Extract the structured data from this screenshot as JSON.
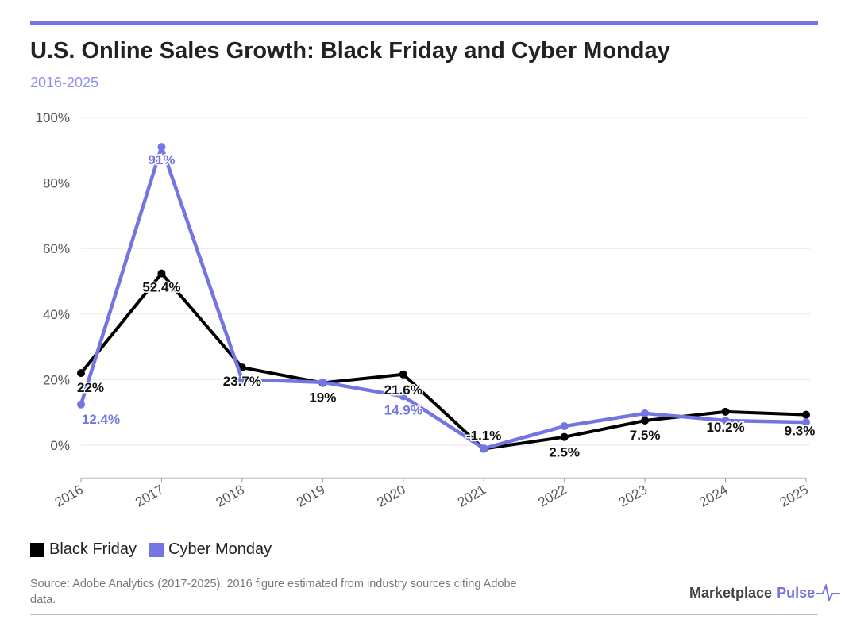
{
  "header": {
    "title": "U.S. Online Sales Growth: Black Friday and Cyber Monday",
    "subtitle": "2016-2025"
  },
  "chart_data": {
    "type": "line",
    "title": "U.S. Online Sales Growth: Black Friday and Cyber Monday",
    "subtitle": "2016-2025",
    "xlabel": "",
    "ylabel": "",
    "x": [
      "2016",
      "2017",
      "2018",
      "2019",
      "2020",
      "2021",
      "2022",
      "2023",
      "2024",
      "2025"
    ],
    "ylim": [
      -10,
      100
    ],
    "yticks": [
      0,
      20,
      40,
      60,
      80,
      100
    ],
    "ytick_labels": [
      "0%",
      "20%",
      "40%",
      "60%",
      "80%",
      "100%"
    ],
    "grid": true,
    "legend_position": "bottom-left",
    "series": [
      {
        "name": "Black Friday",
        "color": "#000000",
        "values": [
          22,
          52.4,
          23.7,
          19,
          21.6,
          -1.1,
          2.5,
          7.5,
          10.2,
          9.3
        ],
        "labels": [
          "22%",
          "52.4%",
          "23.7%",
          "19%",
          "21.6%",
          "-1.1%",
          "2.5%",
          "7.5%",
          "10.2%",
          "9.3%"
        ]
      },
      {
        "name": "Cyber Monday",
        "color": "#7375e2",
        "values": [
          12.4,
          91,
          20,
          19.2,
          14.9,
          -1,
          5.8,
          9.7,
          7.5,
          7
        ],
        "labels": [
          "12.4%",
          "91%",
          "",
          "",
          "14.9%",
          "",
          "",
          "",
          "",
          ""
        ]
      }
    ]
  },
  "legend": {
    "items": [
      {
        "label": "Black Friday",
        "color": "#000000"
      },
      {
        "label": "Cyber Monday",
        "color": "#7375e2"
      }
    ]
  },
  "footer": {
    "source": "Source: Adobe Analytics (2017-2025). 2016 figure estimated from industry sources citing Adobe data.",
    "brand_main": "Marketplace",
    "brand_accent": "Pulse"
  }
}
